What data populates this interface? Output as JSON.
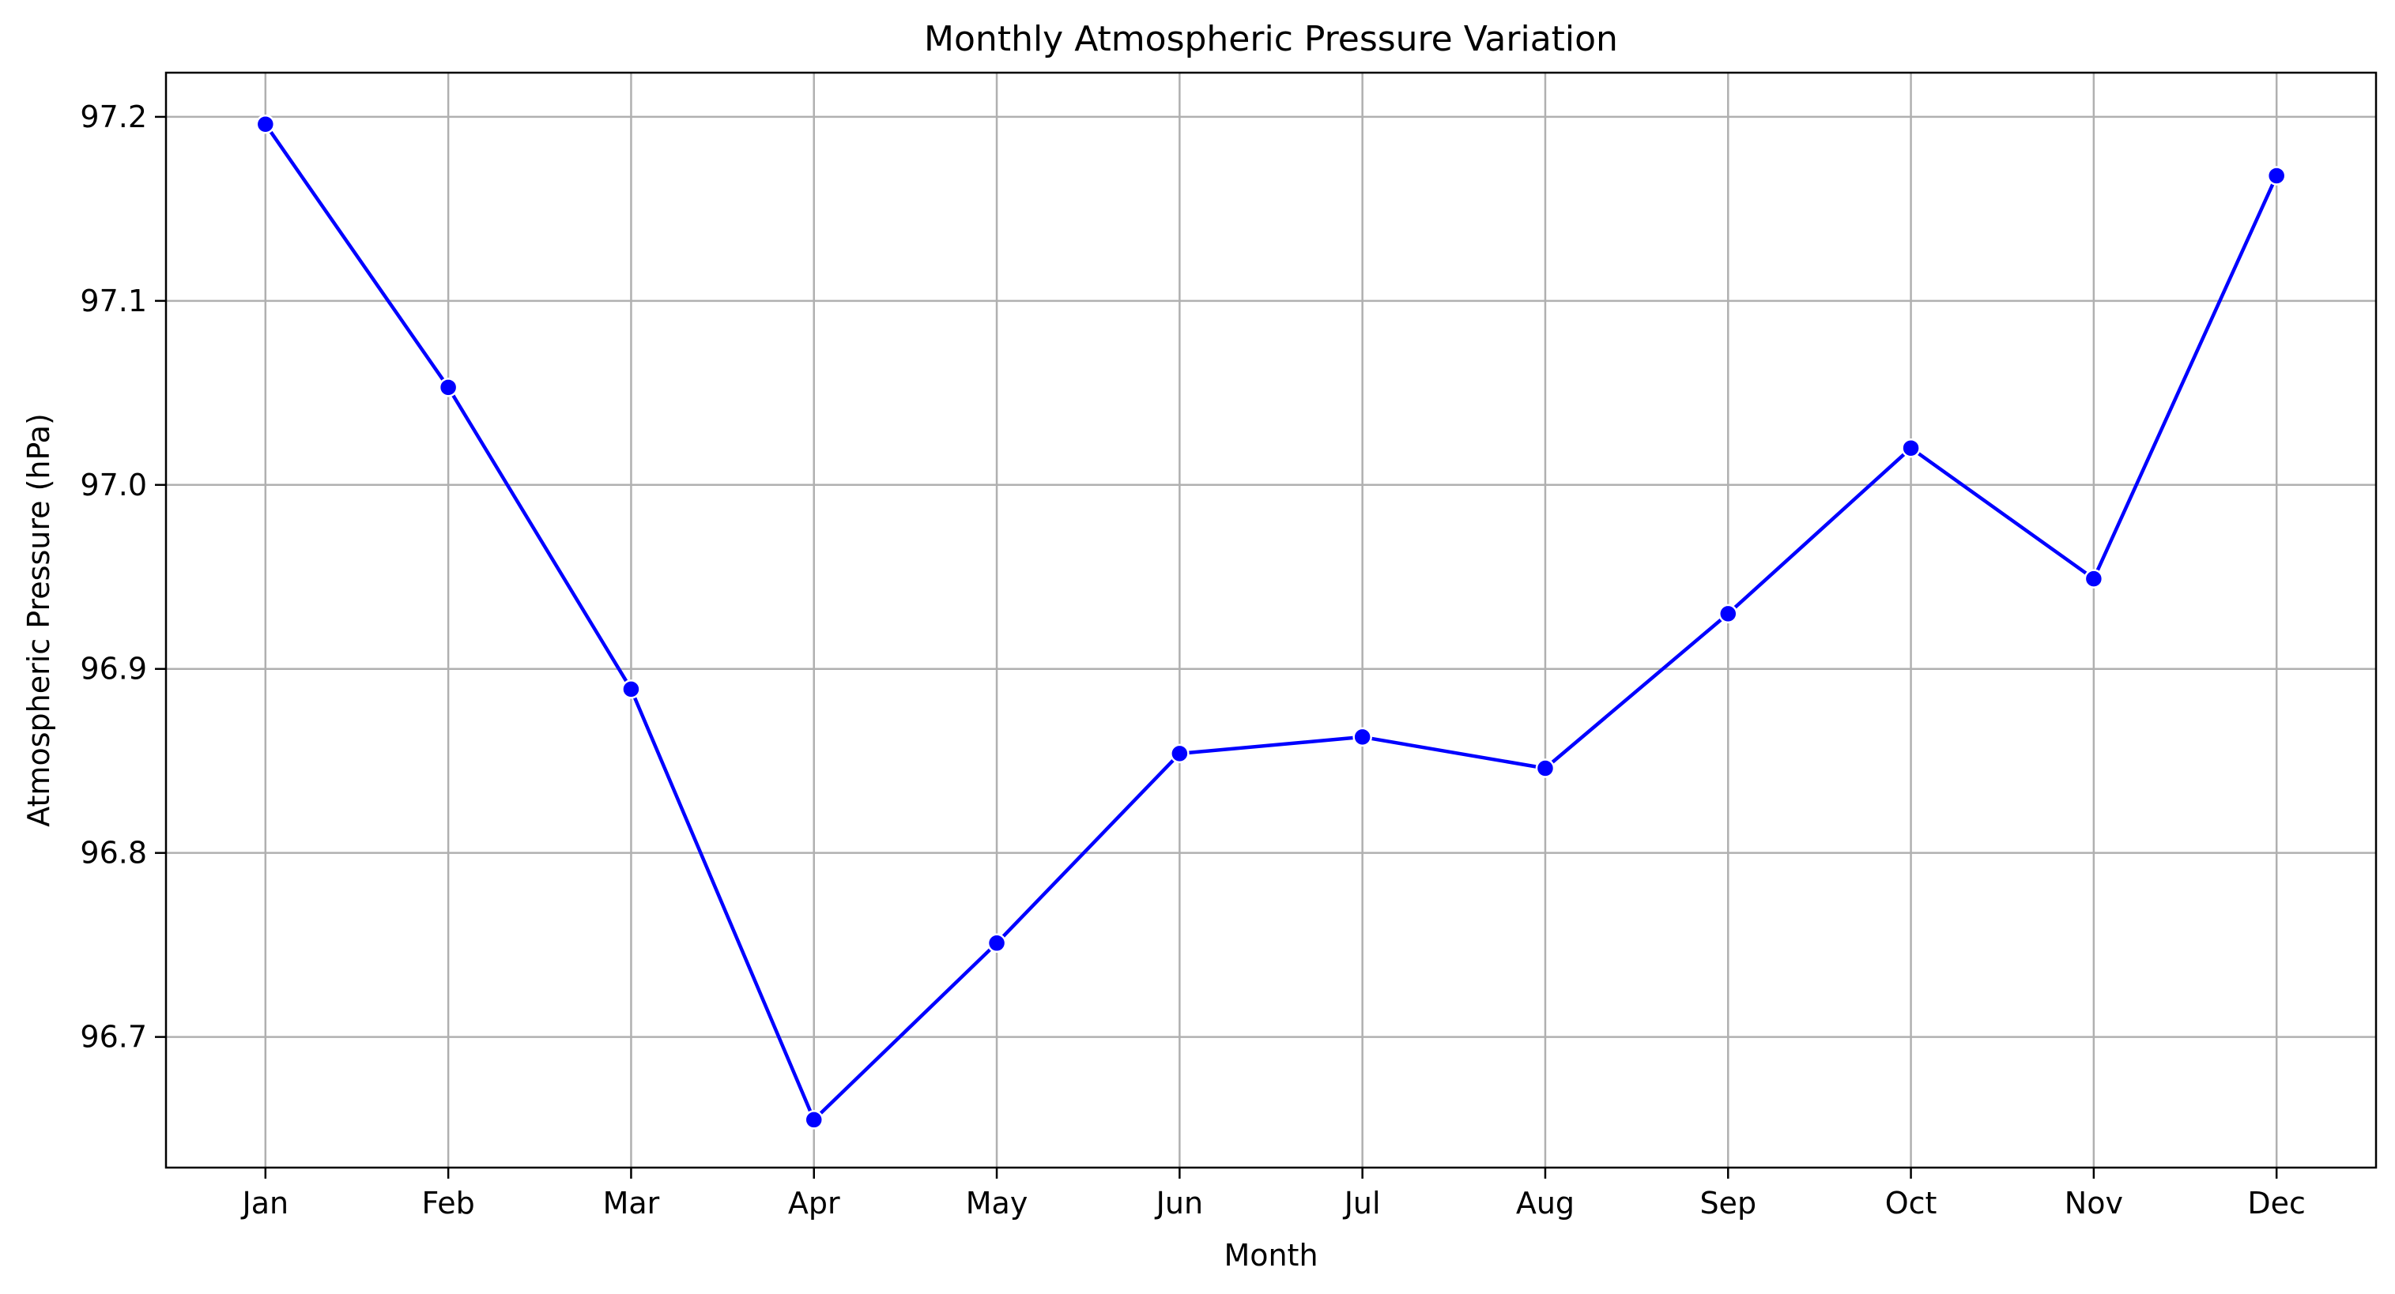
{
  "chart_data": {
    "type": "line",
    "title": "Monthly Atmospheric Pressure Variation",
    "xlabel": "Month",
    "ylabel": "Atmospheric Pressure (hPa)",
    "categories": [
      "Jan",
      "Feb",
      "Mar",
      "Apr",
      "May",
      "Jun",
      "Jul",
      "Aug",
      "Sep",
      "Oct",
      "Nov",
      "Dec"
    ],
    "series": [
      {
        "values": [
          97.196,
          97.053,
          96.889,
          96.655,
          96.751,
          96.854,
          96.863,
          96.846,
          96.93,
          97.02,
          96.949,
          97.168
        ],
        "color": "#0000ff",
        "marker": "circle"
      }
    ],
    "ylim": [
      96.629,
      97.224
    ],
    "yticks": [
      96.7,
      96.8,
      96.9,
      97.0,
      97.1,
      97.2
    ],
    "ytick_labels": [
      "96.7",
      "96.8",
      "96.9",
      "97.0",
      "97.1",
      "97.2"
    ],
    "grid": true,
    "legend": "none"
  }
}
